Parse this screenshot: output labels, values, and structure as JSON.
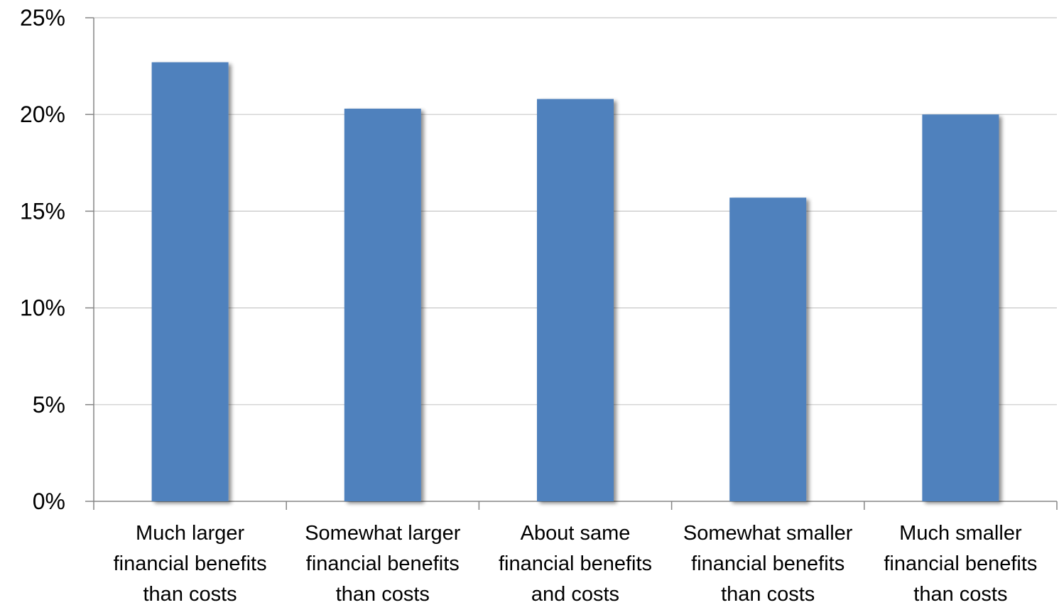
{
  "chart_data": {
    "type": "bar",
    "title": "",
    "xlabel": "",
    "ylabel": "",
    "ylim": [
      0,
      25
    ],
    "y_ticks": [
      0,
      5,
      10,
      15,
      20,
      25
    ],
    "y_tick_format": "percent",
    "grid": true,
    "legend": "none",
    "bar_color": "#4F81BD",
    "categories": [
      [
        "Much larger",
        "financial benefits",
        "than costs"
      ],
      [
        "Somewhat larger",
        "financial benefits",
        "than costs"
      ],
      [
        "About same",
        "financial benefits",
        "and costs"
      ],
      [
        "Somewhat smaller",
        "financial benefits",
        "than costs"
      ],
      [
        "Much smaller",
        "financial benefits",
        "than costs"
      ]
    ],
    "values": [
      22.7,
      20.3,
      20.8,
      15.7,
      20.0
    ]
  }
}
